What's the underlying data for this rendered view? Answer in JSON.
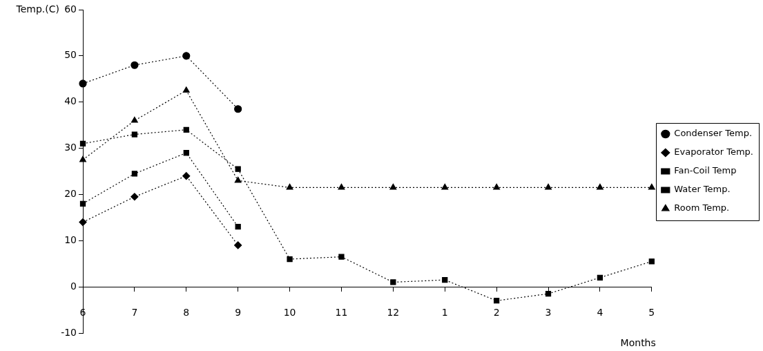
{
  "chart_data": {
    "type": "line",
    "xlabel": "Months",
    "ylabel": "Temp.(C)",
    "categories": [
      "6",
      "7",
      "8",
      "9",
      "10",
      "11",
      "12",
      "1",
      "2",
      "3",
      "4",
      "5"
    ],
    "series": [
      {
        "name": "Condenser Temp.",
        "color": "#000000",
        "marker": "circle",
        "values": [
          44,
          48,
          50,
          38.5,
          null,
          null,
          null,
          null,
          null,
          null,
          null,
          null
        ]
      },
      {
        "name": "Evaporator Temp.",
        "color": "#000000",
        "marker": "diamond",
        "values": [
          14,
          19.5,
          24,
          9,
          null,
          null,
          null,
          null,
          null,
          null,
          null,
          null
        ]
      },
      {
        "name": "Fan-Coil Temp",
        "color": "#000000",
        "marker": "square",
        "values": [
          18,
          24.5,
          29,
          13,
          null,
          null,
          null,
          null,
          null,
          null,
          null,
          null
        ]
      },
      {
        "name": "Water Temp.",
        "color": "#000000",
        "marker": "square",
        "values": [
          31,
          33,
          34,
          25.5,
          6,
          6.5,
          1,
          1.5,
          -3,
          -1.5,
          2,
          5.5
        ]
      },
      {
        "name": "Room Temp.",
        "color": "#000000",
        "marker": "triangle",
        "values": [
          27.5,
          36,
          42.5,
          23,
          21.5,
          21.5,
          21.5,
          21.5,
          21.5,
          21.5,
          21.5,
          21.5
        ]
      }
    ],
    "ylim": [
      -10,
      60
    ],
    "yticks": [
      -10,
      0,
      10,
      20,
      30,
      40,
      50,
      60
    ],
    "grid": false,
    "legend": "right",
    "line_style": "dotted"
  }
}
